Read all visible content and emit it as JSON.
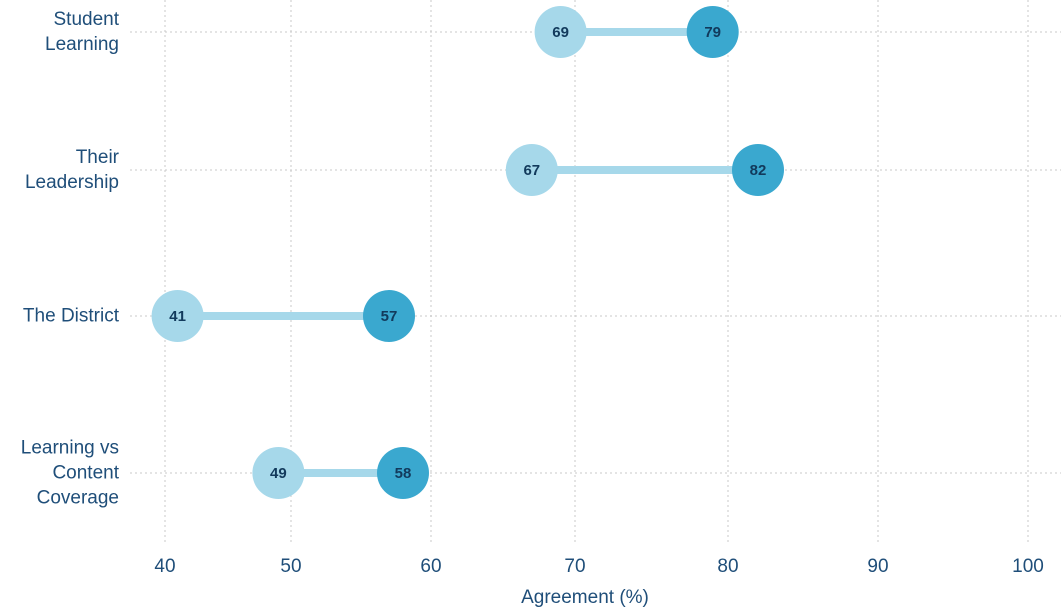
{
  "chart_data": {
    "type": "dumbbell",
    "title": "",
    "xlabel": "Agreement (%)",
    "ylabel": "",
    "xlim": [
      40,
      100
    ],
    "xticks": [
      40,
      50,
      60,
      70,
      80,
      90,
      100
    ],
    "grid": true,
    "categories": [
      {
        "lines": [
          "Student",
          "Learning"
        ],
        "low": 69,
        "high": 79
      },
      {
        "lines": [
          "Their",
          "Leadership"
        ],
        "low": 67,
        "high": 82
      },
      {
        "lines": [
          "The District"
        ],
        "low": 41,
        "high": 57
      },
      {
        "lines": [
          "Learning vs",
          "Content",
          "Coverage"
        ],
        "low": 49,
        "high": 58
      }
    ],
    "colors": {
      "low": "#a6d8ea",
      "high": "#3aa8cf",
      "connector": "#a6d8ea",
      "text": "#1f4e79"
    }
  }
}
